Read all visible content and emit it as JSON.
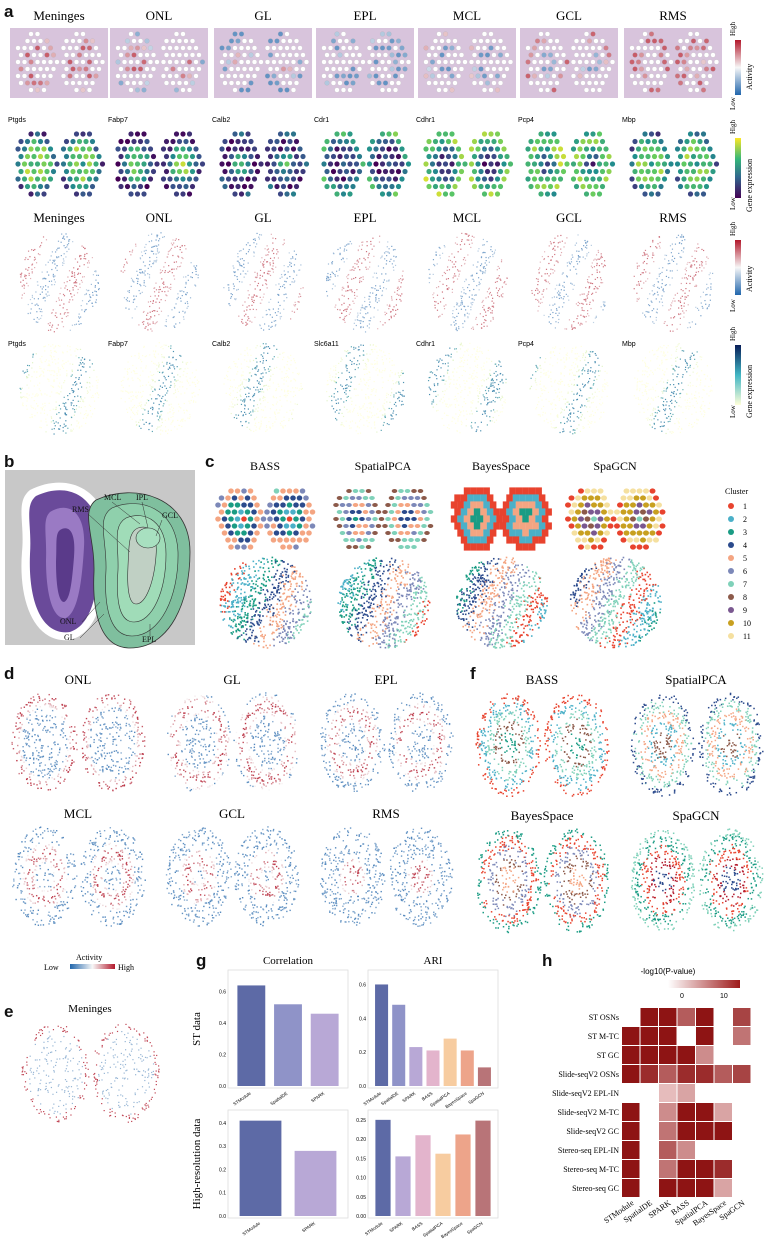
{
  "panels": {
    "a": {
      "letter": "a",
      "row1_titles": [
        "Meninges",
        "ONL",
        "GL",
        "EPL",
        "MCL",
        "GCL",
        "RMS"
      ],
      "row2_genes": [
        "Ptgds",
        "Fabp7",
        "Calb2",
        "Cdr1",
        "Cdhr1",
        "Pcp4",
        "Mbp"
      ],
      "row3_titles": [
        "Meninges",
        "ONL",
        "GL",
        "EPL",
        "MCL",
        "GCL",
        "RMS"
      ],
      "row4_genes": [
        "Ptgds",
        "Fabp7",
        "Calb2",
        "Slc6a11",
        "Cdhr1",
        "Pcp4",
        "Mbp"
      ],
      "activity_legend": {
        "title": "Activity",
        "high": "High",
        "low": "Low"
      },
      "expression_legend": {
        "title": "Gene expression",
        "high": "High",
        "low": "Low"
      }
    },
    "b": {
      "letter": "b",
      "labels": [
        "MCL",
        "IPL",
        "RMS",
        "GCL",
        "ONL",
        "GL",
        "EPL"
      ]
    },
    "c": {
      "letter": "c",
      "methods": [
        "BASS",
        "SpatialPCA",
        "BayesSpace",
        "SpaGCN"
      ],
      "legend_title": "Cluster",
      "clusters": [
        "1",
        "2",
        "3",
        "4",
        "5",
        "6",
        "7",
        "8",
        "9",
        "10",
        "11"
      ],
      "cluster_colors": [
        "#e8432e",
        "#4bb0c8",
        "#1a9c84",
        "#2b4a8c",
        "#f4a582",
        "#7c88b8",
        "#7fd1b9",
        "#8c5a4a",
        "#7a5890",
        "#c8a020",
        "#f5e0a0"
      ]
    },
    "d": {
      "letter": "d",
      "titles": [
        "ONL",
        "GL",
        "EPL",
        "MCL",
        "GCL",
        "RMS"
      ],
      "legend": {
        "title": "Activity",
        "low": "Low",
        "high": "High"
      }
    },
    "e": {
      "letter": "e",
      "title": "Meninges"
    },
    "f": {
      "letter": "f",
      "titles": [
        "BASS",
        "SpatialPCA",
        "BayesSpace",
        "SpaGCN"
      ]
    },
    "h": {
      "letter": "h",
      "legend_title": "-log10(P-value)",
      "legend_ticks": [
        "0",
        "10"
      ],
      "rows": [
        "ST OSNs",
        "ST M-TC",
        "ST GC",
        "Slide-seqV2 OSNs",
        "Slide-seqV2 EPL-IN",
        "Slide-seqV2 M-TC",
        "Slide-seqV2 GC",
        "Stereo-seq EPL-IN",
        "Stereo-seq M-TC",
        "Stereo-seq GC"
      ],
      "cols": [
        "STModule",
        "SpatialDE",
        "SPARK",
        "BASS",
        "SpatialPCA",
        "BayesSpace",
        "SpaGCN"
      ],
      "values": [
        [
          0,
          8,
          8,
          5,
          8,
          0,
          6
        ],
        [
          8,
          8,
          8,
          0,
          8,
          0,
          4
        ],
        [
          8,
          8,
          8,
          8,
          3,
          0,
          0
        ],
        [
          8,
          7,
          5,
          7,
          7,
          5,
          6
        ],
        [
          0,
          0,
          1,
          2,
          0,
          0,
          0
        ],
        [
          8,
          0,
          3,
          8,
          8,
          2,
          0
        ],
        [
          8,
          0,
          4,
          8,
          8,
          8,
          0
        ],
        [
          8,
          0,
          5,
          3,
          0,
          0,
          0
        ],
        [
          8,
          0,
          4,
          8,
          8,
          7,
          0
        ],
        [
          8,
          0,
          8,
          8,
          8,
          2,
          0
        ]
      ]
    }
  },
  "chart_data": [
    {
      "type": "bar",
      "panel": "g",
      "title": "Correlation",
      "row_label": "ST data",
      "categories": [
        "STModule",
        "SpatialDE",
        "SPARK"
      ],
      "values": [
        0.64,
        0.52,
        0.46
      ],
      "ylim": [
        0,
        0.7
      ],
      "yticks": [
        "0.0",
        "0.2",
        "0.4",
        "0.6"
      ],
      "colors": [
        "#5d6aa6",
        "#8f93c8",
        "#b8a8d6"
      ]
    },
    {
      "type": "bar",
      "panel": "g",
      "title": "ARI",
      "categories": [
        "STModule",
        "SpatialDE",
        "SPARK",
        "BASS",
        "SpatialPCA",
        "BayesSpace",
        "SpaGCN"
      ],
      "values": [
        0.6,
        0.48,
        0.23,
        0.21,
        0.28,
        0.21,
        0.11
      ],
      "ylim": [
        0,
        0.65
      ],
      "yticks": [
        "0.0",
        "0.2",
        "0.4",
        "0.6"
      ],
      "colors": [
        "#5d6aa6",
        "#8f93c8",
        "#b8a8d6",
        "#e3b4cc",
        "#f7cca0",
        "#eda48a",
        "#b87478"
      ]
    },
    {
      "type": "bar",
      "panel": "g",
      "row_label": "High-resolution data",
      "categories": [
        "STModule",
        "SPARK"
      ],
      "values": [
        0.41,
        0.28
      ],
      "ylim": [
        0,
        0.43
      ],
      "yticks": [
        "0.0",
        "0.1",
        "0.2",
        "0.3",
        "0.4"
      ],
      "colors": [
        "#5d6aa6",
        "#b8a8d6"
      ]
    },
    {
      "type": "bar",
      "panel": "g",
      "categories": [
        "STModule",
        "SPARK",
        "BASS",
        "SpatialPCA",
        "BayesSpace",
        "SpaGCN"
      ],
      "values": [
        0.25,
        0.155,
        0.21,
        0.162,
        0.212,
        0.248
      ],
      "ylim": [
        0,
        0.26
      ],
      "yticks": [
        "0.00",
        "0.05",
        "0.10",
        "0.15",
        "0.20",
        "0.25"
      ],
      "colors": [
        "#5d6aa6",
        "#b8a8d6",
        "#e3b4cc",
        "#f7cca0",
        "#eda48a",
        "#b87478"
      ]
    }
  ]
}
